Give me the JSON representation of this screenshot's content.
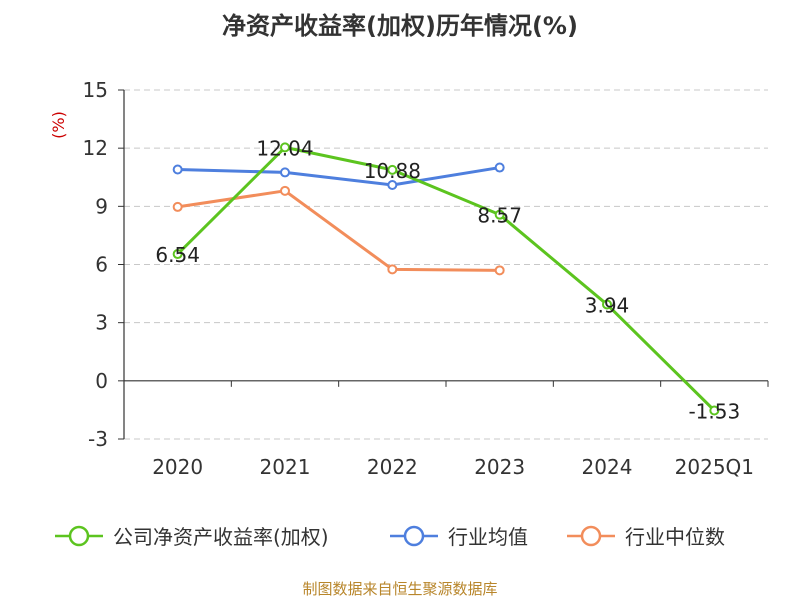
{
  "chart_data": {
    "type": "line",
    "title": "净资产收益率(加权)历年情况(%)",
    "ylabel": "(%)",
    "categories": [
      "2020",
      "2021",
      "2022",
      "2023",
      "2024",
      "2025Q1"
    ],
    "yticks": [
      15,
      12,
      9,
      6,
      3,
      0,
      -3
    ],
    "ylim": [
      -3,
      15
    ],
    "grid": "horizontal-dashed",
    "legend_position": "bottom",
    "series": [
      {
        "name": "公司净资产收益率(加权)",
        "color": "#5cc41f",
        "values": [
          6.54,
          12.04,
          10.88,
          8.57,
          3.94,
          -1.53
        ],
        "labels": [
          "6.54",
          "12.04",
          "10.88",
          "8.57",
          "3.94",
          "-1.53"
        ]
      },
      {
        "name": "行业均值",
        "color": "#4e7fde",
        "values": [
          10.9,
          10.75,
          10.1,
          11.0,
          null,
          null
        ]
      },
      {
        "name": "行业中位数",
        "color": "#f28d5b",
        "values": [
          8.97,
          9.8,
          5.75,
          5.7,
          null,
          null
        ]
      }
    ]
  },
  "source": "制图数据来自恒生聚源数据库"
}
